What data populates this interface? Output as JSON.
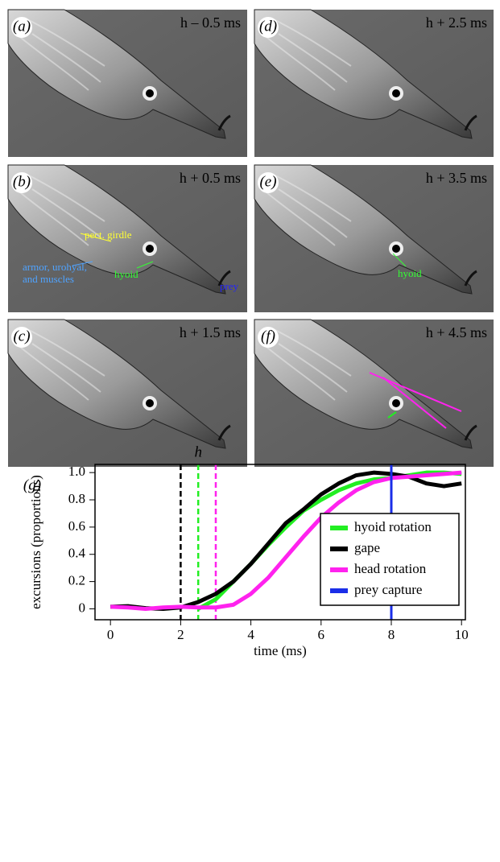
{
  "panels": [
    {
      "label": "(a)",
      "time": "h – 0.5 ms"
    },
    {
      "label": "(b)",
      "time": "h + 0.5 ms",
      "annotations": [
        {
          "lines": [
            "pect. girdle"
          ],
          "color": "#ffff33"
        },
        {
          "lines": [
            "armor, urohyal,",
            "and muscles"
          ],
          "color": "#4fa3ff"
        },
        {
          "lines": [
            "hyoid"
          ],
          "color": "#33ff33"
        },
        {
          "lines": [
            "prey"
          ],
          "color": "#2222ff"
        }
      ]
    },
    {
      "label": "(c)",
      "time": "h + 1.5 ms"
    },
    {
      "label": "(d)",
      "time": "h + 2.5 ms"
    },
    {
      "label": "(e)",
      "time": "h + 3.5 ms",
      "annotations": [
        {
          "lines": [
            "hyoid"
          ],
          "color": "#33ff33"
        }
      ]
    },
    {
      "label": "(f)",
      "time": "h + 4.5 ms"
    }
  ],
  "chart_data": {
    "type": "line",
    "panel_label": "(g)",
    "annotation": "h",
    "xlabel": "time (ms)",
    "ylabel": "excursions (proportions)",
    "x": [
      0,
      0.5,
      1,
      1.5,
      2,
      2.5,
      3,
      3.5,
      4,
      4.5,
      5,
      5.5,
      6,
      6.5,
      7,
      7.5,
      8,
      8.5,
      9,
      9.5,
      10
    ],
    "series": [
      {
        "name": "hyoid rotation",
        "color": "#22ee22",
        "values": [
          null,
          null,
          null,
          null,
          null,
          0.0,
          0.07,
          0.2,
          0.33,
          0.47,
          0.6,
          0.72,
          0.8,
          0.87,
          0.92,
          0.95,
          0.96,
          0.98,
          1.0,
          1.0,
          0.99
        ]
      },
      {
        "name": "gape",
        "color": "#000000",
        "values": [
          0.015,
          0.02,
          0.005,
          0.0,
          0.01,
          0.05,
          0.11,
          0.2,
          0.33,
          0.48,
          0.63,
          0.73,
          0.84,
          0.92,
          0.98,
          1.0,
          0.99,
          0.97,
          0.92,
          0.9,
          0.92
        ]
      },
      {
        "name": "head rotation",
        "color": "#ff22ee",
        "values": [
          0.015,
          0.01,
          0.0,
          0.01,
          0.015,
          0.01,
          0.01,
          0.03,
          0.11,
          0.23,
          0.38,
          0.53,
          0.67,
          0.78,
          0.87,
          0.93,
          0.96,
          0.97,
          0.98,
          0.99,
          1.0
        ]
      },
      {
        "name": "prey capture",
        "color": "#1a2ee8",
        "vline": 8
      }
    ],
    "vlines": [
      {
        "value": 2,
        "color": "#000000"
      },
      {
        "value": 2.5,
        "color": "#22ee22"
      },
      {
        "value": 3,
        "color": "#ff22ee"
      }
    ],
    "xlim": [
      -0.44,
      10.11
    ],
    "ylim": [
      -0.08,
      1.06
    ],
    "xticks": [
      0,
      2,
      4,
      6,
      8,
      10
    ],
    "yticks": [
      0,
      0.2,
      0.4,
      0.6,
      0.8,
      {
        "value": 1,
        "label": "1.0"
      }
    ],
    "legend": "lower-right"
  }
}
